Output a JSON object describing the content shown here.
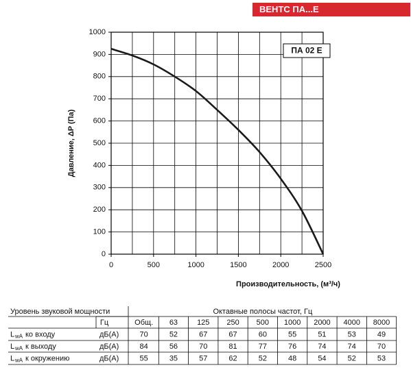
{
  "header": {
    "brand": "ВЕНТС ПА...Е"
  },
  "chart_data": {
    "type": "line",
    "annotation": "ПА 02 Е",
    "xlabel": "Производительность, (м³/ч)",
    "ylabel": "Давление, ΔP (Па)",
    "x": [
      0,
      250,
      500,
      750,
      1000,
      1250,
      1500,
      1750,
      2000,
      2250,
      2500
    ],
    "series": [
      {
        "color": "#1a1a1a",
        "values": [
          925,
          895,
          855,
          800,
          735,
          650,
          560,
          460,
          340,
          195,
          0
        ]
      }
    ],
    "xlim": [
      0,
      2500
    ],
    "ylim": [
      0,
      1000
    ],
    "xticks": [
      0,
      500,
      1000,
      1500,
      2000,
      2500
    ],
    "xgrid": [
      250,
      750,
      1250,
      1750,
      2250
    ],
    "yticks": [
      0,
      100,
      200,
      300,
      400,
      500,
      600,
      700,
      800,
      900,
      1000
    ],
    "grid": true
  },
  "table": {
    "title": "Уровень звуковой мощности",
    "group": "Октавные полосы частот, Гц",
    "unit_header": "Гц",
    "columns": [
      "Общ.",
      "63",
      "125",
      "250",
      "500",
      "1000",
      "2000",
      "4000",
      "8000"
    ],
    "rows": [
      {
        "symbol": "L",
        "subscript": "wA",
        "label": "ко входу",
        "unit": "дБ(А)",
        "values": [
          "70",
          "52",
          "67",
          "67",
          "60",
          "55",
          "51",
          "53",
          "49"
        ]
      },
      {
        "symbol": "L",
        "subscript": "wA",
        "label": "к выходу",
        "unit": "дБ(А)",
        "values": [
          "84",
          "56",
          "70",
          "81",
          "77",
          "76",
          "74",
          "74",
          "70"
        ]
      },
      {
        "symbol": "L",
        "subscript": "wA",
        "label": "к окружению",
        "unit": "дБ(А)",
        "values": [
          "55",
          "35",
          "57",
          "62",
          "52",
          "48",
          "54",
          "52",
          "53"
        ]
      }
    ]
  }
}
